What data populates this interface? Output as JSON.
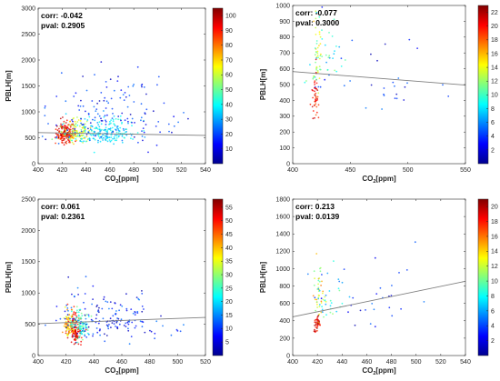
{
  "chart_data": [
    {
      "type": "scatter",
      "corr_text": "corr: -0.042",
      "pval_text": "pval: 0.2905",
      "xlabel": "CO2[ppm]",
      "ylabel": "PBLH[m]",
      "xlim": [
        400,
        540
      ],
      "ylim": [
        0,
        3000
      ],
      "xticks": [
        400,
        420,
        440,
        460,
        480,
        500,
        520,
        540
      ],
      "yticks": [
        0,
        500,
        1000,
        1500,
        2000,
        2500,
        3000
      ],
      "colorbar": {
        "min": 0,
        "max": 105,
        "ticks": [
          10,
          20,
          30,
          40,
          50,
          60,
          70,
          80,
          90,
          100
        ]
      },
      "trend": {
        "x": [
          400,
          540
        ],
        "y": [
          600,
          545
        ]
      },
      "clusters": [
        {
          "cx": 423,
          "cy": 570,
          "sx": 4,
          "sy": 130,
          "n": 170,
          "c_min": 82,
          "c_max": 102
        },
        {
          "cx": 432,
          "cy": 600,
          "sx": 6,
          "sy": 140,
          "n": 110,
          "c_min": 50,
          "c_max": 72
        },
        {
          "cx": 455,
          "cy": 580,
          "sx": 14,
          "sy": 150,
          "n": 200,
          "c_min": 28,
          "c_max": 45
        },
        {
          "cx": 460,
          "cy": 900,
          "sx": 28,
          "sy": 450,
          "n": 150,
          "c_min": 5,
          "c_max": 25
        }
      ]
    },
    {
      "type": "scatter",
      "corr_text": "corr: -0.077",
      "pval_text": "pval: 0.3000",
      "xlabel": "CO2[ppm]",
      "ylabel": "PBLH[m]",
      "xlim": [
        400,
        550
      ],
      "ylim": [
        0,
        1000
      ],
      "xticks": [
        400,
        450,
        500,
        550
      ],
      "yticks": [
        0,
        100,
        200,
        300,
        400,
        500,
        600,
        700,
        800,
        900,
        1000
      ],
      "colorbar": {
        "min": 0,
        "max": 23,
        "ticks": [
          2,
          4,
          6,
          8,
          10,
          12,
          14,
          16,
          18,
          20,
          22
        ]
      },
      "trend": {
        "x": [
          400,
          550
        ],
        "y": [
          582,
          497
        ]
      },
      "clusters": [
        {
          "cx": 420,
          "cy": 420,
          "sx": 1.5,
          "sy": 100,
          "n": 45,
          "c_min": 18,
          "c_max": 22
        },
        {
          "cx": 421,
          "cy": 650,
          "sx": 2,
          "sy": 120,
          "n": 40,
          "c_min": 10,
          "c_max": 16
        },
        {
          "cx": 428,
          "cy": 680,
          "sx": 8,
          "sy": 130,
          "n": 35,
          "c_min": 6,
          "c_max": 12
        },
        {
          "cx": 470,
          "cy": 520,
          "sx": 35,
          "sy": 160,
          "n": 35,
          "c_min": 1,
          "c_max": 6
        }
      ]
    },
    {
      "type": "scatter",
      "corr_text": "corr: 0.061",
      "pval_text": "pval: 0.2361",
      "xlabel": "CO2[ppm]",
      "ylabel": "PBLH[m]",
      "xlim": [
        400,
        520
      ],
      "ylim": [
        0,
        2500
      ],
      "xticks": [
        400,
        420,
        440,
        460,
        480,
        500,
        520
      ],
      "yticks": [
        0,
        500,
        1000,
        1500,
        2000,
        2500
      ],
      "colorbar": {
        "min": 0,
        "max": 58,
        "ticks": [
          5,
          10,
          15,
          20,
          25,
          30,
          35,
          40,
          45,
          50,
          55
        ]
      },
      "trend": {
        "x": [
          400,
          520
        ],
        "y": [
          510,
          610
        ]
      },
      "clusters": [
        {
          "cx": 426,
          "cy": 420,
          "sx": 2.5,
          "sy": 170,
          "n": 130,
          "c_min": 46,
          "c_max": 56
        },
        {
          "cx": 422,
          "cy": 480,
          "sx": 2,
          "sy": 150,
          "n": 70,
          "c_min": 32,
          "c_max": 44
        },
        {
          "cx": 430,
          "cy": 480,
          "sx": 3,
          "sy": 150,
          "n": 90,
          "c_min": 20,
          "c_max": 30
        },
        {
          "cx": 452,
          "cy": 600,
          "sx": 20,
          "sy": 260,
          "n": 170,
          "c_min": 2,
          "c_max": 15
        }
      ]
    },
    {
      "type": "scatter",
      "corr_text": "corr: 0.213",
      "pval_text": "pval: 0.0139",
      "xlabel": "CO2[ppm]",
      "ylabel": "PBLH[m]",
      "xlim": [
        400,
        540
      ],
      "ylim": [
        0,
        1800
      ],
      "xticks": [
        400,
        420,
        440,
        460,
        480,
        500,
        520,
        540
      ],
      "yticks": [
        0,
        200,
        400,
        600,
        800,
        1000,
        1200,
        1400,
        1600,
        1800
      ],
      "colorbar": {
        "min": 0,
        "max": 21,
        "ticks": [
          2,
          4,
          6,
          8,
          10,
          12,
          14,
          16,
          18,
          20
        ]
      },
      "trend": {
        "x": [
          400,
          540
        ],
        "y": [
          445,
          855
        ]
      },
      "clusters": [
        {
          "cx": 420,
          "cy": 360,
          "sx": 1.5,
          "sy": 90,
          "n": 40,
          "c_min": 17,
          "c_max": 21
        },
        {
          "cx": 421,
          "cy": 700,
          "sx": 2,
          "sy": 200,
          "n": 40,
          "c_min": 10,
          "c_max": 16
        },
        {
          "cx": 430,
          "cy": 600,
          "sx": 7,
          "sy": 200,
          "n": 30,
          "c_min": 5,
          "c_max": 11
        },
        {
          "cx": 460,
          "cy": 650,
          "sx": 25,
          "sy": 250,
          "n": 30,
          "c_min": 1,
          "c_max": 5
        }
      ]
    }
  ]
}
